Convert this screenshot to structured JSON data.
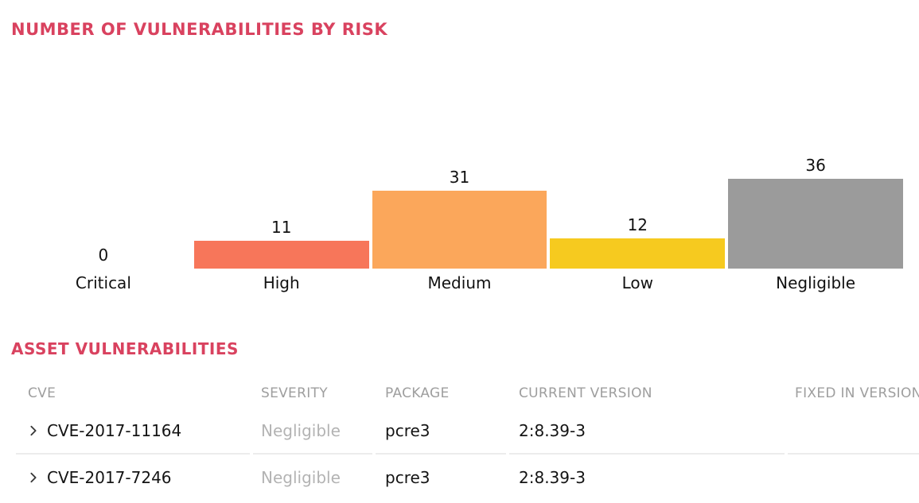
{
  "accent_color": "#d9425f",
  "chart_data": {
    "type": "bar",
    "title": "NUMBER OF VULNERABILITIES BY RISK",
    "categories": [
      "Critical",
      "High",
      "Medium",
      "Low",
      "Negligible"
    ],
    "values": [
      0,
      11,
      31,
      12,
      36
    ],
    "bar_colors": [
      null,
      "#f7765a",
      "#fba75b",
      "#f6ca1f",
      "#9b9b9b"
    ],
    "data_labels": [
      0,
      11,
      31,
      12,
      36
    ],
    "xlabel": "",
    "ylabel": "",
    "ylim": [
      0,
      40
    ],
    "grid": false,
    "legend": false,
    "layout": "value labels above bars, category labels below baseline"
  },
  "table": {
    "title": "ASSET VULNERABILITIES",
    "columns": [
      "CVE",
      "SEVERITY",
      "PACKAGE",
      "CURRENT VERSION",
      "FIXED IN VERSION"
    ],
    "expand_icon": "chevron-right",
    "rows": [
      {
        "cve": "CVE-2017-11164",
        "severity": "Negligible",
        "package": "pcre3",
        "current_version": "2:8.39-3",
        "fixed_in_version": ""
      },
      {
        "cve": "CVE-2017-7246",
        "severity": "Negligible",
        "package": "pcre3",
        "current_version": "2:8.39-3",
        "fixed_in_version": ""
      }
    ]
  }
}
